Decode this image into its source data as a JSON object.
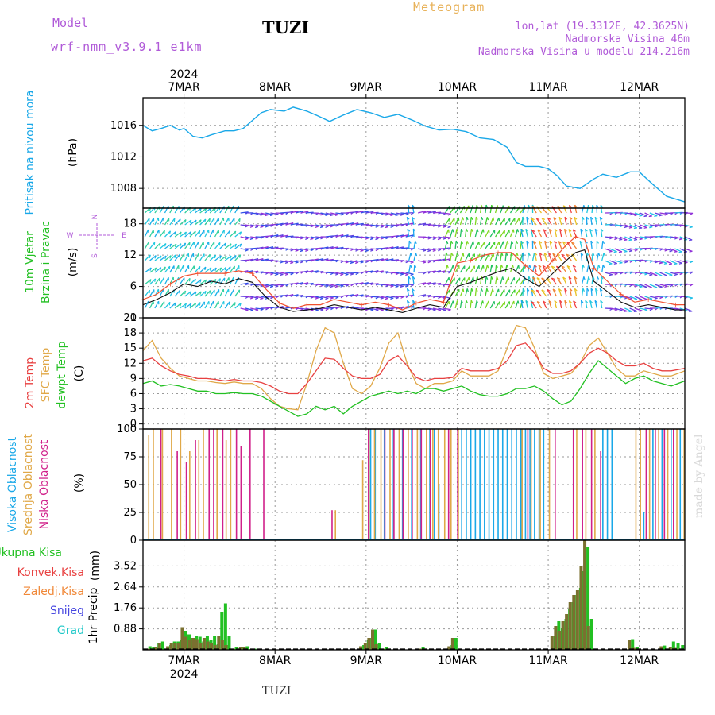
{
  "header": {
    "model_label": "Model",
    "model_name": "wrf-nmm_v3.9.1 e1km",
    "station": "TUZI",
    "meteogram": "Meteogram",
    "coords": "lon,lat (19.3312E, 42.3625N)",
    "elevation": "Nadmorska Visina 46m",
    "elevation_model": "Nadmorska Visina u modelu 214.216m"
  },
  "footer": {
    "station": "TUZI",
    "credit": "made by Angel",
    "year": "2024"
  },
  "colors": {
    "pressure": "#1aa8e8",
    "wind_speed": "#111111",
    "wind_gust": "#f05030",
    "t2m": "#e84040",
    "tsfc": "#e0a848",
    "dewpoint": "#22c022",
    "cloud_high": "#1aa8e8",
    "cloud_mid": "#e0a848",
    "cloud_low": "#d0208a",
    "precip_total": "#22c022",
    "precip_conv": "#e84040"
  },
  "chart_data": [
    {
      "type": "line",
      "panel": "pressure",
      "ylabel": [
        "Pritisak na nivou mora",
        "(hPa)"
      ],
      "yticks": [
        1008,
        1012,
        1016
      ],
      "ylim": [
        1005.5,
        1019.5
      ],
      "xlim": [
        6.55,
        12.5
      ],
      "xticks": [
        "7MAR",
        "8MAR",
        "9MAR",
        "10MAR",
        "11MAR",
        "12MAR"
      ],
      "x": [
        6.55,
        6.65,
        6.75,
        6.85,
        6.95,
        7.0,
        7.1,
        7.2,
        7.3,
        7.45,
        7.55,
        7.65,
        7.75,
        7.85,
        7.95,
        8.1,
        8.2,
        8.35,
        8.45,
        8.6,
        8.75,
        8.9,
        9.05,
        9.2,
        9.35,
        9.5,
        9.65,
        9.8,
        9.95,
        10.1,
        10.25,
        10.4,
        10.55,
        10.65,
        10.75,
        10.9,
        11.0,
        11.1,
        11.2,
        11.35,
        11.5,
        11.6,
        11.75,
        11.9,
        12.0,
        12.15,
        12.3,
        12.5
      ],
      "series": [
        {
          "values": [
            1016.0,
            1015.3,
            1015.6,
            1016.0,
            1015.4,
            1015.6,
            1014.6,
            1014.4,
            1014.8,
            1015.3,
            1015.3,
            1015.6,
            1016.6,
            1017.6,
            1018.0,
            1017.8,
            1018.3,
            1017.8,
            1017.3,
            1016.5,
            1017.3,
            1018.0,
            1017.6,
            1017.0,
            1017.4,
            1016.7,
            1015.9,
            1015.4,
            1015.5,
            1015.2,
            1014.4,
            1014.2,
            1013.2,
            1011.3,
            1010.8,
            1010.8,
            1010.5,
            1009.6,
            1008.3,
            1008.0,
            1009.2,
            1009.8,
            1009.4,
            1010.1,
            1010.1,
            1008.5,
            1007.0,
            1006.3
          ]
        }
      ]
    },
    {
      "type": "line",
      "panel": "wind",
      "ylabel": [
        "10m Vjetar",
        "Brzina i Pravac",
        "(m/s)"
      ],
      "direction_key": [
        "N",
        "E",
        "W",
        "S"
      ],
      "yticks": [
        0,
        6,
        12,
        18
      ],
      "ylim": [
        0,
        21
      ],
      "xlim": [
        6.55,
        12.5
      ],
      "x": [
        6.55,
        6.7,
        6.85,
        7.0,
        7.15,
        7.3,
        7.45,
        7.6,
        7.75,
        7.9,
        8.05,
        8.2,
        8.35,
        8.5,
        8.65,
        8.8,
        8.95,
        9.1,
        9.25,
        9.4,
        9.55,
        9.7,
        9.85,
        10.0,
        10.15,
        10.3,
        10.45,
        10.6,
        10.75,
        10.9,
        11.05,
        11.2,
        11.3,
        11.4,
        11.5,
        11.65,
        11.8,
        11.95,
        12.1,
        12.25,
        12.4,
        12.5
      ],
      "series": [
        {
          "name": "speed",
          "values": [
            2.5,
            3.5,
            4.8,
            6.5,
            6.0,
            7.0,
            6.5,
            7.5,
            6.8,
            4.0,
            2.0,
            1.2,
            1.5,
            1.8,
            2.5,
            2.0,
            1.5,
            2.0,
            1.5,
            1.0,
            1.8,
            2.5,
            2.0,
            6.0,
            6.8,
            7.8,
            8.8,
            9.5,
            7.5,
            6.0,
            8.5,
            11.0,
            12.5,
            13.0,
            7.0,
            5.0,
            3.0,
            2.0,
            2.5,
            2.0,
            1.5,
            1.5
          ]
        },
        {
          "name": "gust",
          "values": [
            3.5,
            4.5,
            6.5,
            8.0,
            8.5,
            8.5,
            8.5,
            9.0,
            8.5,
            5.5,
            2.8,
            1.8,
            2.5,
            2.5,
            3.5,
            3.0,
            2.5,
            3.0,
            2.5,
            1.5,
            2.8,
            3.5,
            3.0,
            10.5,
            11.0,
            12.0,
            12.5,
            12.5,
            10.0,
            8.0,
            11.0,
            14.0,
            15.5,
            15.0,
            9.5,
            7.0,
            4.5,
            3.0,
            3.5,
            3.0,
            2.5,
            2.5
          ]
        }
      ]
    },
    {
      "type": "line",
      "panel": "temperature",
      "ylabel": [
        "2m Temp",
        "SFC Temp",
        "dewpt Temp",
        "(C)"
      ],
      "yticks": [
        0,
        3,
        6,
        9,
        12,
        15,
        18,
        21
      ],
      "ylim": [
        -1,
        21
      ],
      "xlim": [
        6.55,
        12.5
      ],
      "x": [
        6.55,
        6.65,
        6.75,
        6.85,
        6.95,
        7.05,
        7.15,
        7.25,
        7.35,
        7.45,
        7.55,
        7.65,
        7.75,
        7.85,
        7.95,
        8.05,
        8.15,
        8.25,
        8.35,
        8.45,
        8.55,
        8.65,
        8.75,
        8.85,
        8.95,
        9.05,
        9.15,
        9.25,
        9.35,
        9.45,
        9.55,
        9.65,
        9.75,
        9.85,
        9.95,
        10.05,
        10.15,
        10.25,
        10.35,
        10.45,
        10.55,
        10.65,
        10.75,
        10.85,
        10.95,
        11.05,
        11.15,
        11.25,
        11.35,
        11.45,
        11.55,
        11.65,
        11.75,
        11.85,
        11.95,
        12.05,
        12.15,
        12.25,
        12.35,
        12.5
      ],
      "series": [
        {
          "name": "2m Temp",
          "values": [
            12.5,
            13.0,
            11.5,
            10.5,
            9.8,
            9.5,
            9.0,
            9.0,
            8.8,
            8.5,
            8.8,
            8.5,
            8.5,
            8.2,
            7.5,
            6.5,
            6.0,
            6.0,
            8.0,
            10.5,
            13.0,
            12.8,
            11.0,
            9.5,
            9.0,
            9.0,
            9.8,
            12.5,
            13.5,
            11.5,
            9.2,
            8.5,
            9.0,
            9.0,
            9.2,
            11.0,
            10.5,
            10.5,
            10.5,
            11.0,
            12.5,
            15.5,
            16.0,
            14.0,
            11.0,
            10.0,
            10.0,
            10.5,
            12.0,
            14.0,
            15.0,
            14.0,
            12.5,
            11.5,
            11.5,
            12.0,
            11.0,
            10.5,
            10.5,
            11.0
          ]
        },
        {
          "name": "SFC Temp",
          "values": [
            14.5,
            16.5,
            13.0,
            11.0,
            9.5,
            9.0,
            8.5,
            8.5,
            8.2,
            8.0,
            8.3,
            8.0,
            8.0,
            7.0,
            5.0,
            3.5,
            3.0,
            2.8,
            8.0,
            14.5,
            19.0,
            18.0,
            12.0,
            7.0,
            6.0,
            7.5,
            11.0,
            16.0,
            18.0,
            12.0,
            8.0,
            7.0,
            8.0,
            8.0,
            8.5,
            10.5,
            9.5,
            9.5,
            9.5,
            10.5,
            15.0,
            19.5,
            19.0,
            15.0,
            10.0,
            9.0,
            9.5,
            10.0,
            12.0,
            15.5,
            17.0,
            14.0,
            11.0,
            9.5,
            9.5,
            10.5,
            10.0,
            9.5,
            9.5,
            10.5
          ]
        },
        {
          "name": "dewpt Temp",
          "values": [
            8.0,
            8.5,
            7.5,
            7.8,
            7.5,
            7.0,
            6.5,
            6.5,
            6.0,
            6.0,
            6.2,
            6.0,
            6.0,
            5.5,
            4.5,
            3.5,
            2.5,
            1.5,
            2.0,
            3.5,
            2.8,
            3.5,
            2.0,
            3.5,
            4.5,
            5.5,
            6.0,
            6.5,
            6.0,
            6.5,
            6.0,
            7.0,
            7.0,
            6.5,
            7.0,
            7.5,
            6.5,
            5.8,
            5.5,
            5.5,
            6.0,
            7.0,
            7.0,
            7.5,
            6.5,
            5.0,
            3.8,
            4.5,
            7.0,
            10.0,
            12.5,
            11.0,
            9.5,
            8.0,
            9.0,
            9.5,
            8.5,
            8.0,
            7.5,
            8.5
          ]
        }
      ]
    },
    {
      "type": "bar",
      "panel": "cloud",
      "ylabel": [
        "Visoka Oblacnost",
        "Srednja Oblacnost",
        "Niska Oblacnost",
        "(%)"
      ],
      "yticks": [
        0,
        25,
        50,
        75,
        100
      ],
      "ylim": [
        0,
        100
      ],
      "xlim": [
        6.55,
        12.5
      ],
      "series": [
        {
          "name": "Visoka Oblacnost",
          "x": [
            9.05,
            9.1,
            9.2,
            9.3,
            9.4,
            9.5,
            9.6,
            9.7,
            9.75,
            9.8,
            10.05,
            10.1,
            10.15,
            10.2,
            10.25,
            10.3,
            10.35,
            10.4,
            10.45,
            10.5,
            10.55,
            10.6,
            10.65,
            10.7,
            10.75,
            10.8,
            10.85,
            10.9,
            10.95,
            11.6,
            11.65,
            11.7,
            12.05,
            12.15,
            12.25,
            12.35,
            12.45
          ],
          "values": [
            100,
            100,
            100,
            100,
            100,
            100,
            100,
            100,
            100,
            50,
            100,
            100,
            100,
            100,
            100,
            100,
            100,
            100,
            100,
            100,
            100,
            100,
            100,
            100,
            100,
            100,
            100,
            100,
            100,
            100,
            100,
            100,
            25,
            100,
            100,
            100,
            100
          ]
        },
        {
          "name": "Srednja Oblacnost",
          "x": [
            6.6,
            6.65,
            6.75,
            6.85,
            6.95,
            7.05,
            7.15,
            7.2,
            7.35,
            7.45,
            7.5,
            8.65,
            8.95,
            9.02,
            9.08,
            9.15,
            9.25,
            9.35,
            9.45,
            9.55,
            9.65,
            9.72,
            9.78,
            9.85,
            9.92,
            10.0,
            10.7,
            10.8,
            10.9,
            11.0,
            11.3,
            11.4,
            11.5,
            11.95,
            12.0,
            12.1,
            12.2,
            12.3,
            12.4,
            12.48
          ],
          "values": [
            95,
            100,
            100,
            100,
            100,
            80,
            90,
            100,
            100,
            90,
            100,
            27,
            72,
            100,
            100,
            100,
            100,
            100,
            100,
            100,
            100,
            100,
            100,
            100,
            100,
            100,
            100,
            100,
            100,
            100,
            100,
            100,
            100,
            100,
            100,
            100,
            100,
            100,
            100,
            100
          ]
        },
        {
          "name": "Niska Oblacnost",
          "x": [
            6.72,
            6.9,
            7.0,
            7.1,
            7.25,
            7.3,
            7.4,
            7.55,
            7.6,
            7.7,
            7.85,
            8.6,
            9.0,
            9.18,
            9.28,
            9.38,
            9.48,
            9.58,
            9.68,
            9.88,
            9.98,
            10.75,
            11.05,
            11.25,
            11.35,
            11.45,
            11.55,
            12.05,
            12.15,
            12.25,
            12.35
          ],
          "values": [
            100,
            80,
            70,
            90,
            100,
            100,
            100,
            100,
            85,
            100,
            100,
            27,
            100,
            100,
            100,
            100,
            100,
            100,
            100,
            100,
            100,
            100,
            100,
            100,
            100,
            100,
            80,
            100,
            100,
            100,
            100
          ]
        }
      ]
    },
    {
      "type": "bar",
      "panel": "precip",
      "ylabel": [
        "1hr Precip",
        "(mm)"
      ],
      "legend": [
        "Ukupna Kisa",
        "Konvek.Kisa",
        "Zaledj.Kisa",
        "Snijeg",
        "Grad"
      ],
      "yticks": [
        0.88,
        1.76,
        2.64,
        3.52
      ],
      "ylim": [
        0,
        4.6
      ],
      "xlim": [
        6.55,
        12.5
      ],
      "xticks": [
        "7MAR",
        "8MAR",
        "9MAR",
        "10MAR",
        "11MAR",
        "12MAR"
      ],
      "x": [
        6.6,
        6.64,
        6.7,
        6.74,
        6.83,
        6.87,
        6.91,
        6.95,
        6.99,
        7.03,
        7.07,
        7.11,
        7.15,
        7.19,
        7.23,
        7.27,
        7.31,
        7.35,
        7.39,
        7.43,
        7.47,
        7.55,
        7.63,
        7.67,
        7.75,
        8.95,
        9.0,
        9.04,
        9.08,
        9.12,
        9.2,
        9.6,
        9.92,
        9.96,
        11.05,
        11.09,
        11.13,
        11.17,
        11.21,
        11.25,
        11.29,
        11.33,
        11.37,
        11.41,
        11.45,
        11.9,
        11.95,
        12.25,
        12.35,
        12.4,
        12.45
      ],
      "series": [
        {
          "name": "Ukupna Kisa",
          "values": [
            0.15,
            0.12,
            0.3,
            0.35,
            0.2,
            0.35,
            0.35,
            0.4,
            0.8,
            0.65,
            0.5,
            0.6,
            0.55,
            0.35,
            0.6,
            0.4,
            0.6,
            0.25,
            1.6,
            1.95,
            0.6,
            0.1,
            0.12,
            0.15,
            0.05,
            0.2,
            0.4,
            0.5,
            0.85,
            0.3,
            0.1,
            0.1,
            0.2,
            0.5,
            0.6,
            1.2,
            0.9,
            1.3,
            1.7,
            2.0,
            2.3,
            2.6,
            3.3,
            4.3,
            1.3,
            0.45,
            0.1,
            0.18,
            0.35,
            0.3,
            0.2
          ]
        },
        {
          "name": "Konvek.Kisa",
          "values": [
            0.05,
            0.05,
            0.1,
            0.3,
            0.15,
            0.3,
            0.3,
            0.3,
            0.95,
            0.55,
            0.4,
            0.5,
            0.45,
            0.3,
            0.5,
            0.35,
            0.3,
            0.2,
            0.6,
            0.4,
            0.2,
            0.05,
            0.1,
            0.12,
            0.03,
            0.15,
            0.3,
            0.5,
            0.85,
            0.25,
            0.05,
            0.05,
            0.15,
            0.5,
            0.6,
            1.0,
            0.8,
            1.2,
            1.5,
            2.0,
            2.3,
            2.5,
            3.5,
            4.6,
            1.0,
            0.4,
            0.08,
            0.15,
            0.1,
            0.08,
            0.05
          ]
        }
      ]
    }
  ]
}
